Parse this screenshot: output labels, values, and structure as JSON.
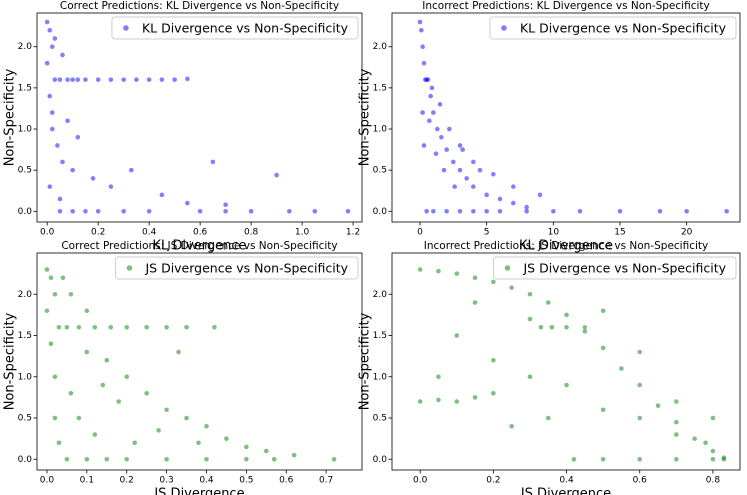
{
  "chart_data": [
    {
      "type": "scatter",
      "title": "Correct Predictions: KL Divergence vs Non-Specificity",
      "x_label": "KL Divergence",
      "y_label": "Non-Specificity",
      "x": [
        0.0,
        0.01,
        0.02,
        0.0,
        0.03,
        0.05,
        0.01,
        0.02,
        0.08,
        0.1,
        0.12,
        0.15,
        0.2,
        0.25,
        0.3,
        0.35,
        0.4,
        0.45,
        0.5,
        0.55,
        0.05,
        0.1,
        0.15,
        0.2,
        0.3,
        0.4,
        0.6,
        0.7,
        0.8,
        0.95,
        1.05,
        1.18,
        0.02,
        0.04,
        0.06,
        0.1,
        0.18,
        0.25,
        0.33,
        0.45,
        0.55,
        0.65,
        0.9,
        0.7,
        0.03,
        0.06,
        0.01,
        0.08,
        0.12,
        0.05
      ],
      "series": [
        {
          "name": "KL Divergence vs Non-Specificity",
          "color": "#0000ff",
          "values": [
            2.3,
            2.2,
            2.0,
            1.8,
            1.6,
            1.6,
            1.4,
            1.2,
            1.6,
            1.6,
            1.6,
            1.6,
            1.6,
            1.6,
            1.6,
            1.6,
            1.6,
            1.6,
            1.6,
            1.61,
            0,
            0,
            0,
            0,
            0,
            0,
            0,
            0,
            0,
            0,
            0,
            0,
            1.0,
            0.8,
            0.6,
            0.5,
            0.4,
            0.3,
            0.5,
            0.2,
            0.1,
            0.6,
            0.44,
            0.08,
            2.1,
            1.9,
            0.3,
            1.1,
            0.9,
            0.15
          ]
        }
      ],
      "xlim": [
        -0.04,
        1.235
      ],
      "xticks": [
        {
          "value": 0,
          "label": "0.0"
        },
        0.2,
        0.4,
        0.6,
        0.8,
        {
          "value": 1,
          "label": "1.0"
        },
        1.2
      ],
      "ylim": [
        -0.13,
        2.41
      ],
      "yticks": [
        {
          "value": 0,
          "label": "0.0"
        },
        0.5,
        {
          "value": 1,
          "label": "1.0"
        },
        1.5,
        {
          "value": 2,
          "label": "2.0"
        }
      ],
      "legend": "upper right",
      "alpha": 0.5
    },
    {
      "type": "scatter",
      "title": "Incorrect Predictions: KL Divergence vs Non-Specificity",
      "x_label": "KL Divergence",
      "y_label": "Non-Specificity",
      "x": [
        0,
        0.1,
        0.2,
        0.3,
        0.5,
        0.8,
        1,
        1.3,
        1.6,
        2,
        2.5,
        3,
        3.5,
        4,
        5,
        6,
        7,
        8,
        0.5,
        1,
        2,
        3,
        4,
        5,
        6,
        8,
        10,
        12,
        15,
        18,
        20,
        23,
        0.4,
        0.6,
        0.9,
        1.5,
        2.2,
        3,
        4.5,
        7,
        1.2,
        1.8,
        2.6,
        0.2,
        0.3,
        3.2,
        4,
        9,
        5.5,
        0.7
      ],
      "series": [
        {
          "name": "KL Divergence vs Non-Specificity",
          "color": "#0000ff",
          "values": [
            2.3,
            2.2,
            2.0,
            1.8,
            1.6,
            1.4,
            1.2,
            1.0,
            0.9,
            0.75,
            0.6,
            0.5,
            0.4,
            0.3,
            0.2,
            0.15,
            0.1,
            0.05,
            0,
            0,
            0,
            0,
            0,
            0,
            0,
            0,
            0,
            0,
            0,
            0,
            0,
            0,
            1.6,
            1.6,
            1.5,
            1.3,
            1.0,
            0.8,
            0.5,
            0.3,
            0.7,
            0.5,
            0.3,
            1.2,
            0.8,
            0.75,
            0.6,
            0.2,
            0.45,
            1.1
          ]
        }
      ],
      "xlim": [
        -2.1,
        24.0
      ],
      "xticks": [
        0,
        5,
        10,
        15,
        20
      ],
      "ylim": [
        -0.13,
        2.41
      ],
      "yticks": [
        {
          "value": 0,
          "label": "0.0"
        },
        0.5,
        {
          "value": 1,
          "label": "1.0"
        },
        1.5,
        {
          "value": 2,
          "label": "2.0"
        }
      ],
      "legend": "upper right",
      "alpha": 0.5
    },
    {
      "type": "scatter",
      "title": "Correct Predictions: JS Divergence vs Non-Specificity",
      "x_label": "JS Divergence",
      "y_label": "Non-Specificity",
      "x": [
        0,
        0.01,
        0.02,
        0,
        0.03,
        0.05,
        0.01,
        0.02,
        0.08,
        0.12,
        0.16,
        0.2,
        0.25,
        0.3,
        0.35,
        0.42,
        0.05,
        0.1,
        0.15,
        0.2,
        0.3,
        0.4,
        0.5,
        0.57,
        0.72,
        0.04,
        0.06,
        0.1,
        0.15,
        0.2,
        0.25,
        0.3,
        0.35,
        0.4,
        0.45,
        0.5,
        0.55,
        0.62,
        0.08,
        0.12,
        0.18,
        0.22,
        0.28,
        0.02,
        0.03,
        0.06,
        0.1,
        0.14,
        0.33,
        0.38
      ],
      "series": [
        {
          "name": "JS Divergence vs Non-Specificity",
          "color": "#008000",
          "values": [
            2.3,
            2.2,
            2.0,
            1.8,
            1.6,
            1.6,
            1.4,
            1.0,
            1.6,
            1.6,
            1.6,
            1.6,
            1.6,
            1.6,
            1.6,
            1.6,
            0,
            0,
            0,
            0,
            0,
            0,
            0,
            0,
            0,
            2.2,
            2.0,
            1.8,
            1.2,
            1.0,
            0.8,
            0.6,
            0.5,
            0.4,
            0.25,
            0.15,
            0.1,
            0.05,
            0.5,
            0.3,
            0.7,
            0.2,
            0.35,
            0.5,
            0.2,
            0.8,
            1.3,
            0.9,
            1.3,
            0.2
          ]
        }
      ],
      "xlim": [
        -0.025,
        0.79
      ],
      "xticks": [
        {
          "value": 0,
          "label": "0.0"
        },
        0.1,
        0.2,
        0.3,
        0.4,
        0.5,
        0.6,
        0.7
      ],
      "ylim": [
        -0.13,
        2.5
      ],
      "yticks": [
        {
          "value": 0,
          "label": "0.0"
        },
        0.5,
        {
          "value": 1,
          "label": "1.0"
        },
        1.5,
        {
          "value": 2,
          "label": "2.0"
        }
      ],
      "legend": "upper right",
      "alpha": 0.5
    },
    {
      "type": "scatter",
      "title": "Incorrect Predictions: JS Divergence vs Non-Specificity",
      "x_label": "JS Divergence",
      "y_label": "Non-Specificity",
      "x": [
        0,
        0.05,
        0.1,
        0.15,
        0.2,
        0.25,
        0.3,
        0.35,
        0.4,
        0.45,
        0.5,
        0.55,
        0.6,
        0.65,
        0.7,
        0.75,
        0.8,
        0.83,
        0.33,
        0.36,
        0.4,
        0.45,
        0.42,
        0.5,
        0.6,
        0.7,
        0.8,
        0.83,
        0,
        0.05,
        0.1,
        0.15,
        0.2,
        0.3,
        0.4,
        0.5,
        0.6,
        0.7,
        0.8,
        0.1,
        0.2,
        0.3,
        0.15,
        0.25,
        0.35,
        0.5,
        0.6,
        0.05,
        0.7,
        0.78
      ],
      "series": [
        {
          "name": "JS Divergence vs Non-Specificity",
          "color": "#008000",
          "values": [
            2.3,
            2.28,
            2.25,
            2.2,
            2.15,
            2.08,
            2.0,
            1.9,
            1.75,
            1.55,
            1.35,
            1.1,
            0.9,
            0.65,
            0.45,
            0.25,
            0.1,
            0.02,
            1.6,
            1.6,
            1.6,
            1.6,
            0,
            0,
            0,
            0,
            0,
            0,
            0.7,
            0.72,
            0.7,
            0.75,
            0.8,
            1.0,
            0.9,
            0.6,
            0.5,
            0.3,
            0.5,
            1.5,
            1.2,
            1.7,
            1.9,
            0.4,
            0.5,
            1.8,
            1.3,
            1.0,
            0.7,
            0.2
          ]
        }
      ],
      "xlim": [
        -0.077,
        0.874
      ],
      "xticks": [
        {
          "value": 0,
          "label": "0.0"
        },
        0.2,
        0.4,
        0.6,
        0.8
      ],
      "ylim": [
        -0.13,
        2.5
      ],
      "yticks": [
        {
          "value": 0,
          "label": "0.0"
        },
        0.5,
        {
          "value": 1,
          "label": "1.0"
        },
        1.5,
        {
          "value": 2,
          "label": "2.0"
        }
      ],
      "legend": "upper right",
      "alpha": 0.5
    }
  ]
}
